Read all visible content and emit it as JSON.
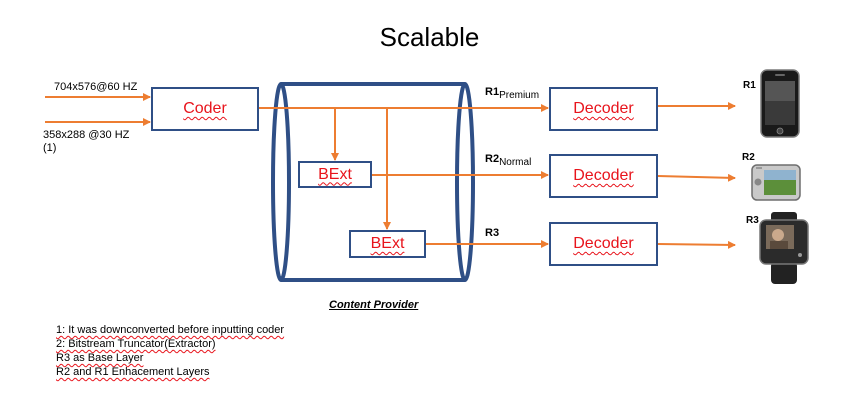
{
  "title": "Scalable",
  "inputs": {
    "high_res": "704x576@60 HZ",
    "low_res": "358x288 @30 HZ",
    "low_res_note": "(1)"
  },
  "blocks": {
    "coder": "Coder",
    "bext_1": "BExt",
    "bext_2": "BExt",
    "decoder_1": "Decoder",
    "decoder_2": "Decoder",
    "decoder_3": "Decoder"
  },
  "streams": {
    "r1": {
      "main": "R1",
      "sub": "Premium"
    },
    "r2": {
      "main": "R2",
      "sub": "Normal"
    },
    "r3": {
      "main": "R3",
      "sub": ""
    }
  },
  "devices": {
    "r1": "R1",
    "r2": "R2",
    "r3": "R3"
  },
  "provider_label": "Content Provider",
  "notes": [
    "1: It was downconverted before inputting coder",
    "2: Bitstream Truncator(Extractor)",
    "R3 as Base Layer",
    "R2 and R1 Enhacement Layers"
  ],
  "colors": {
    "box_border": "#2f4f86",
    "arrow": "#ed7d31",
    "block_text": "#e8141c"
  },
  "icons": {
    "r1_device": "smartphone-icon",
    "r2_device": "handheld-media-player-icon",
    "r3_device": "smartwatch-icon"
  }
}
